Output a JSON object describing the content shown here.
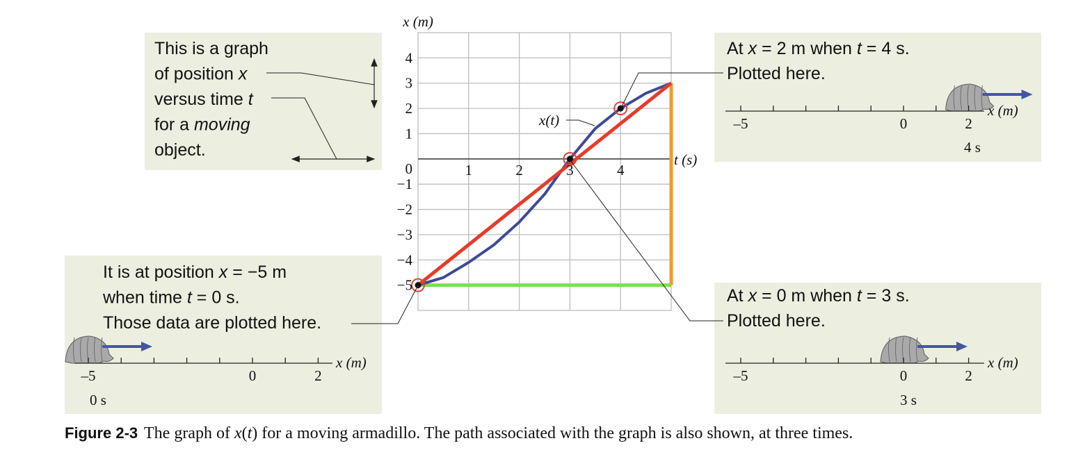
{
  "chart_data": {
    "type": "line",
    "x_label": "t (s)",
    "y_label": "x (m)",
    "xlim": [
      0,
      5
    ],
    "ylim": [
      -6,
      5
    ],
    "xticks": [
      1,
      2,
      3,
      4
    ],
    "yticks": [
      4,
      3,
      2,
      1,
      0,
      {
        "value": -1,
        "label": "−1"
      },
      {
        "value": -2,
        "label": "−2"
      },
      {
        "value": -3,
        "label": "−3"
      },
      {
        "value": -4,
        "label": "−4"
      },
      {
        "value": -5,
        "label": "−5"
      }
    ],
    "grid": true,
    "series": [
      {
        "name": "x(t)",
        "color": "#3e4a96",
        "x": [
          0,
          0.5,
          1,
          1.5,
          2,
          2.5,
          3,
          3.5,
          4,
          4.5,
          5
        ],
        "values": [
          -5,
          -4.7,
          -4.1,
          -3.4,
          -2.5,
          -1.4,
          0,
          1.2,
          2,
          2.6,
          3
        ]
      },
      {
        "color": "#e53c2a",
        "x": [
          0,
          5
        ],
        "values": [
          -5,
          3
        ]
      },
      {
        "color": "#f29a2e",
        "x": [
          5,
          5
        ],
        "values": [
          -5,
          3
        ]
      },
      {
        "color": "#7ae050",
        "x": [
          0,
          5
        ],
        "values": [
          -5,
          -5
        ]
      }
    ],
    "points": [
      {
        "x": 0,
        "y": -5
      },
      {
        "x": 3,
        "y": 0
      },
      {
        "x": 4,
        "y": 2
      }
    ]
  },
  "callouts": [
    {
      "lines": [
        [
          "This is a graph"
        ],
        [
          "of position ",
          "x"
        ],
        [
          "versus time ",
          "t"
        ],
        [
          "for a ",
          "moving"
        ],
        [
          "object."
        ]
      ]
    },
    {
      "lines": [
        [
          "At ",
          "x",
          " = 2 m when ",
          "t",
          " = 4 s."
        ],
        [
          "Plotted here."
        ]
      ],
      "number_line": {
        "xlim": [
          -5,
          2
        ],
        "xticks": [
          {
            "value": -5,
            "label": "–5"
          },
          0,
          2
        ],
        "axis_label": "x (m)",
        "time": "4 s",
        "armadillo_x": 2
      }
    },
    {
      "lines": [
        [
          "It is at position ",
          "x",
          " = −5 m"
        ],
        [
          "when time ",
          "t",
          " = 0 s."
        ],
        [
          "Those data are plotted here."
        ]
      ],
      "number_line": {
        "xlim": [
          -5,
          2
        ],
        "xticks": [
          {
            "value": -5,
            "label": "–5"
          },
          0,
          2
        ],
        "axis_label": "x (m)",
        "time": "0 s",
        "armadillo_x": -5
      }
    },
    {
      "lines": [
        [
          "At ",
          "x",
          " = 0 m when ",
          "t",
          " = 3 s."
        ],
        [
          "Plotted here."
        ]
      ],
      "number_line": {
        "xlim": [
          -5,
          2
        ],
        "xticks": [
          {
            "value": -5,
            "label": "–5"
          },
          0,
          2
        ],
        "axis_label": "x (m)",
        "time": "3 s",
        "armadillo_x": 0
      }
    }
  ],
  "caption": {
    "label": "Figure 2-3",
    "runs": [
      "The graph of ",
      "x",
      "(",
      "t",
      ") for a moving armadillo. The path associated with the graph is also shown, at three times."
    ]
  }
}
